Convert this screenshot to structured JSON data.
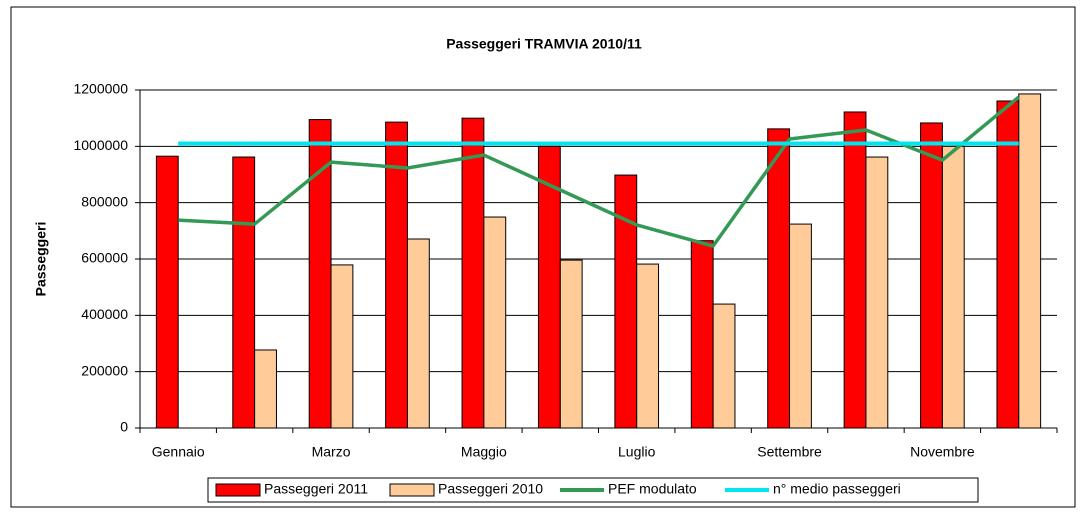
{
  "chart_data": {
    "type": "bar",
    "title": "Passeggeri TRAMVIA 2010/11",
    "y_label": "Passeggeri",
    "categories": [
      "Gennaio",
      null,
      "Marzo",
      null,
      "Maggio",
      null,
      "Luglio",
      null,
      "Settembre",
      null,
      "Novembre",
      null
    ],
    "series": [
      {
        "name": "Passeggeri 2011",
        "type": "bar",
        "color": "#ff0000",
        "values": [
          965000,
          962000,
          1095000,
          1086000,
          1100000,
          1000000,
          898000,
          665000,
          1062000,
          1122000,
          1083000,
          1161000
        ]
      },
      {
        "name": "Passeggeri 2010",
        "type": "bar",
        "color": "#ffcc99",
        "values": [
          null,
          277000,
          579000,
          671000,
          749000,
          596000,
          582000,
          440000,
          724000,
          962000,
          1000000,
          1186000
        ]
      },
      {
        "name": "PEF modulato",
        "type": "line",
        "color": "#339955",
        "values": [
          738000,
          724000,
          944000,
          923000,
          969000,
          845000,
          721000,
          646000,
          1026000,
          1058000,
          951000,
          1175000
        ]
      },
      {
        "name": "n° medio passeggeri",
        "type": "line",
        "color": "#00e5ee",
        "values": [
          1010000,
          1010000,
          1010000,
          1010000,
          1010000,
          1010000,
          1010000,
          1010000,
          1010000,
          1010000,
          1010000,
          1010000
        ]
      }
    ],
    "ylim": [
      0,
      1200000
    ],
    "yticks": [
      0,
      200000,
      400000,
      600000,
      800000,
      1000000,
      1200000
    ],
    "grid": true,
    "legend": "bottom"
  }
}
